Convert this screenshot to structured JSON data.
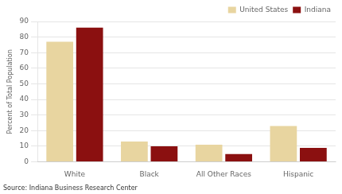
{
  "chart_data": {
    "type": "bar",
    "categories": [
      "White",
      "Black",
      "All Other Races",
      "Hispanic"
    ],
    "series": [
      {
        "name": "United States",
        "color": "#E8D5A0",
        "values": [
          77,
          13,
          11,
          23
        ]
      },
      {
        "name": "Indiana",
        "color": "#8B1010",
        "values": [
          86,
          10,
          5,
          9
        ]
      }
    ],
    "ylabel": "Percent of Total Population",
    "ylim": [
      0,
      90
    ],
    "yticks": [
      0,
      10,
      20,
      30,
      40,
      50,
      60,
      70,
      80,
      90
    ],
    "grid": true,
    "legend": "upper right",
    "annotations": [
      "Source: Indiana Business Research Center"
    ]
  }
}
